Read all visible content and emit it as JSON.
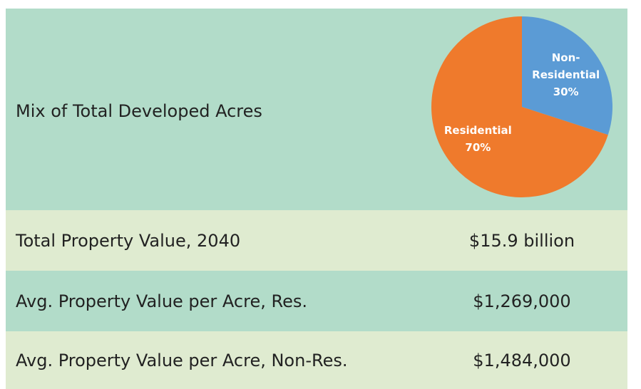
{
  "table": {
    "rows": [
      [
        "Mix of Total Developed Acres"
      ],
      [
        "Total Property Value, 2040",
        "$15.9 billion"
      ],
      [
        "Avg. Property Value per Acre, Res.",
        "$1,269,000"
      ],
      [
        "Avg. Property Value per Acre, Non-Res.",
        "$1,484,000"
      ]
    ]
  },
  "chart_data": {
    "type": "pie",
    "categories": [
      "Non-Residential",
      "Residential"
    ],
    "values": [
      30,
      70
    ],
    "value_labels": [
      "30%",
      "70%"
    ],
    "colors": [
      "#5b9bd5",
      "#ef7a2c"
    ]
  }
}
